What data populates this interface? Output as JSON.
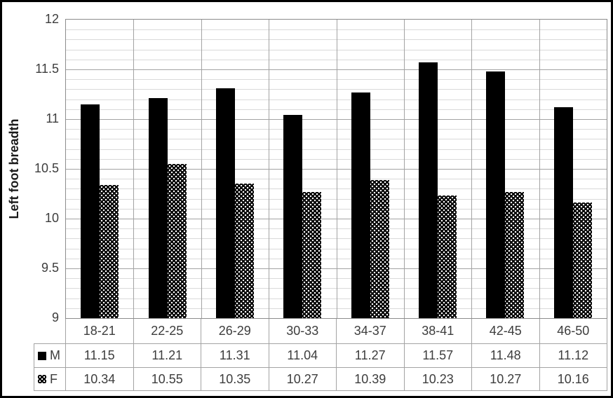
{
  "chart_data": {
    "type": "bar",
    "title": "",
    "xlabel": "",
    "ylabel": "Left foot breadth",
    "categories": [
      "18-21",
      "22-25",
      "26-29",
      "30-33",
      "34-37",
      "38-41",
      "42-45",
      "46-50"
    ],
    "series": [
      {
        "name": "M",
        "style": "solid-black",
        "values": [
          11.15,
          11.21,
          11.31,
          11.04,
          11.27,
          11.57,
          11.48,
          11.12
        ]
      },
      {
        "name": "F",
        "style": "black-dotted-pattern",
        "values": [
          10.34,
          10.55,
          10.35,
          10.27,
          10.39,
          10.23,
          10.27,
          10.16
        ]
      }
    ],
    "ylim": [
      9,
      12
    ],
    "yticks": [
      9,
      9.5,
      10,
      10.5,
      11,
      11.5,
      12
    ],
    "minor_gridline_step": 0.1,
    "major_gridline_step": 0.5,
    "grid": "horizontal-minor-and-major-plus-vertical-category",
    "legend_position": "data-table-left-column",
    "data_table_shown": true
  },
  "colors": {
    "bar_m": "#000000",
    "bar_f_base": "#000000",
    "bar_f_dots": "#ffffff",
    "grid_minor": "#d9d9d9",
    "grid_major": "#a3a3a3",
    "axis_text": "#3d3d3d",
    "outer_border": "#000000",
    "background": "#ffffff"
  }
}
